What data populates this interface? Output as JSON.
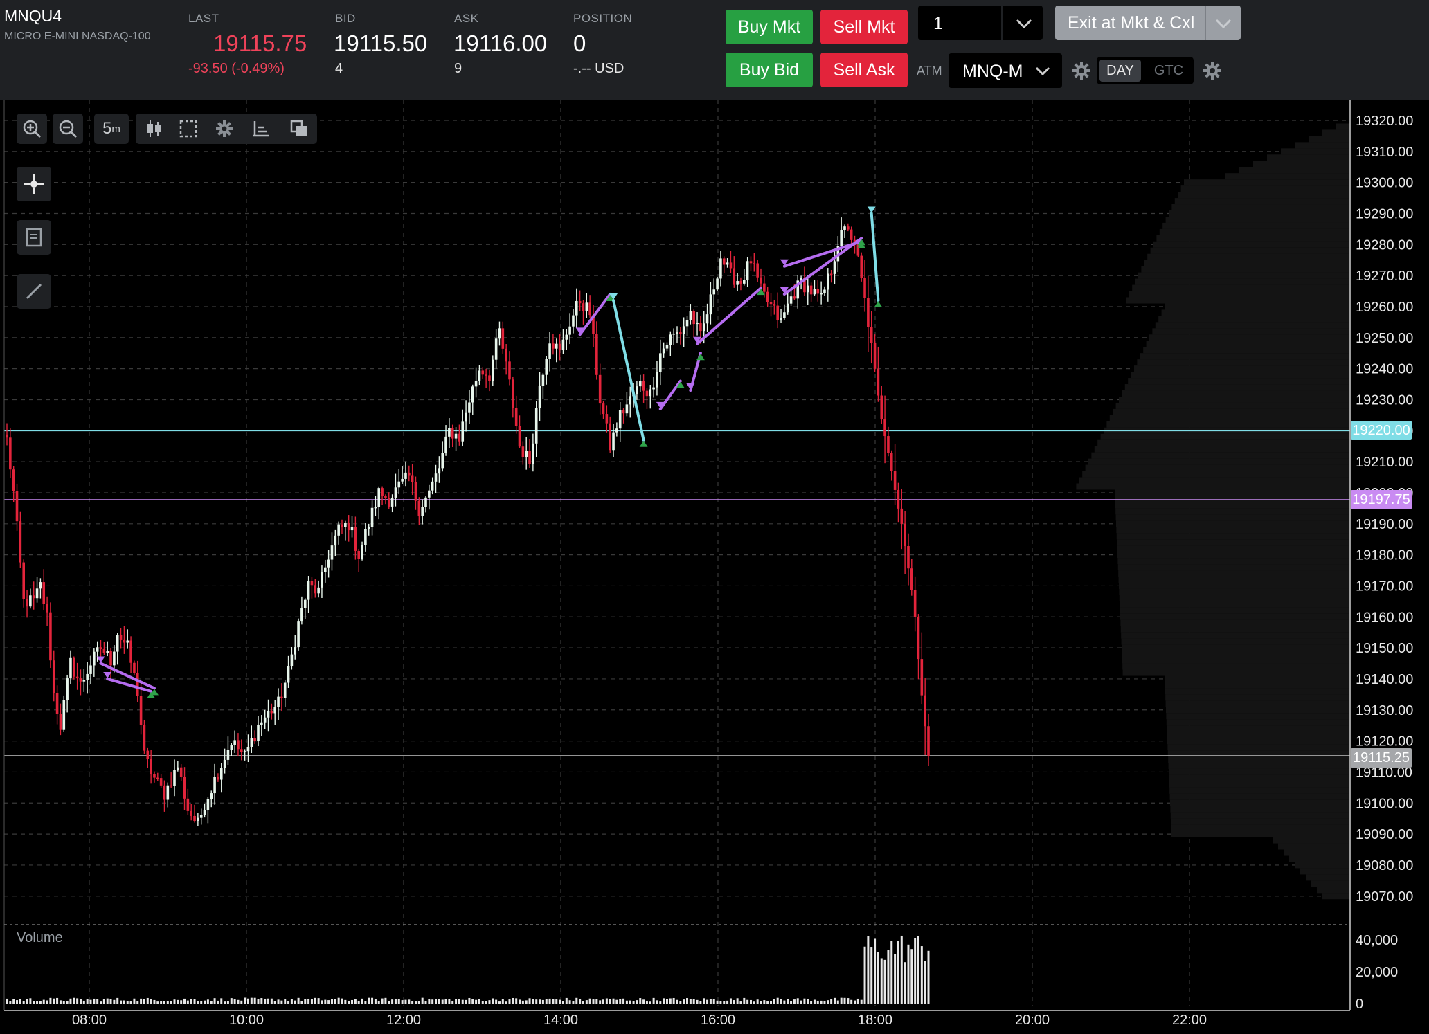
{
  "instrument": {
    "symbol": "MNQU4",
    "name": "MICRO E-MINI NASDAQ-100"
  },
  "quote": {
    "last_label": "LAST",
    "last": "19115.75",
    "change": "-93.50 (-0.49%)",
    "bid_label": "BID",
    "bid": "19115.50",
    "bid_size": "4",
    "ask_label": "ASK",
    "ask": "19116.00",
    "ask_size": "9",
    "position_label": "POSITION",
    "position": "0",
    "pnl": "-.-- USD"
  },
  "order_buttons": {
    "buy_mkt": "Buy Mkt",
    "sell_mkt": "Sell Mkt",
    "buy_bid": "Buy Bid",
    "sell_ask": "Sell Ask",
    "exit": "Exit at Mkt & Cxl"
  },
  "quantity": "1",
  "atm": {
    "label": "ATM",
    "value": "MNQ-M"
  },
  "tif": {
    "day": "DAY",
    "gtc": "GTC",
    "selected": "DAY"
  },
  "toolbar": {
    "interval": "5",
    "interval_unit": "m"
  },
  "colors": {
    "up": "#e8f6ec",
    "down": "#e3243b",
    "accent_cyan": "#7fdde6",
    "accent_purple": "#b56cf0",
    "buy": "#27a042",
    "sell": "#e3243b",
    "header_bg": "#1f2124"
  },
  "chart_data": {
    "type": "candlestick",
    "y_axis": {
      "min": 19060,
      "max": 19325,
      "ticks": [
        "19320.00",
        "19310.00",
        "19300.00",
        "19290.00",
        "19280.00",
        "19270.00",
        "19260.00",
        "19250.00",
        "19240.00",
        "19230.00",
        "19220.00",
        "19210.00",
        "19200.00",
        "19190.00",
        "19180.00",
        "19170.00",
        "19160.00",
        "19150.00",
        "19140.00",
        "19130.00",
        "19120.00",
        "19110.00",
        "19100.00",
        "19090.00",
        "19080.00",
        "19070.00"
      ]
    },
    "x_axis": {
      "ticks": [
        "08:00",
        "10:00",
        "12:00",
        "14:00",
        "16:00",
        "18:00",
        "20:00",
        "22:00"
      ]
    },
    "price_lines": [
      {
        "label": "19220.00",
        "value": 19220.0,
        "color": "#7fdde6"
      },
      {
        "label": "19197.75",
        "value": 19197.75,
        "color": "#c98bf2"
      },
      {
        "label": "19115.25",
        "value": 19115.25,
        "color": "#a9a9a9"
      }
    ],
    "keypoints": [
      [
        0,
        19217
      ],
      [
        2,
        19200
      ],
      [
        5,
        19165
      ],
      [
        8,
        19165
      ],
      [
        10,
        19170
      ],
      [
        12,
        19160
      ],
      [
        14,
        19135
      ],
      [
        16,
        19125
      ],
      [
        19,
        19145
      ],
      [
        22,
        19138
      ],
      [
        25,
        19145
      ],
      [
        28,
        19150
      ],
      [
        31,
        19146
      ],
      [
        33,
        19155
      ],
      [
        36,
        19150
      ],
      [
        39,
        19136
      ],
      [
        41,
        19115
      ],
      [
        44,
        19108
      ],
      [
        47,
        19103
      ],
      [
        51,
        19112
      ],
      [
        54,
        19098
      ],
      [
        57,
        19093
      ],
      [
        59,
        19100
      ],
      [
        63,
        19110
      ],
      [
        67,
        19120
      ],
      [
        71,
        19115
      ],
      [
        75,
        19125
      ],
      [
        79,
        19130
      ],
      [
        81,
        19132
      ],
      [
        84,
        19142
      ],
      [
        87,
        19158
      ],
      [
        90,
        19170
      ],
      [
        93,
        19168
      ],
      [
        96,
        19180
      ],
      [
        99,
        19188
      ],
      [
        102,
        19190
      ],
      [
        105,
        19180
      ],
      [
        108,
        19190
      ],
      [
        111,
        19200
      ],
      [
        114,
        19198
      ],
      [
        117,
        19202
      ],
      [
        120,
        19205
      ],
      [
        123,
        19195
      ],
      [
        126,
        19200
      ],
      [
        129,
        19208
      ],
      [
        132,
        19220
      ],
      [
        135,
        19218
      ],
      [
        138,
        19230
      ],
      [
        141,
        19240
      ],
      [
        144,
        19238
      ],
      [
        147,
        19252
      ],
      [
        150,
        19235
      ],
      [
        153,
        19215
      ],
      [
        156,
        19210
      ],
      [
        159,
        19235
      ],
      [
        162,
        19250
      ],
      [
        165,
        19245
      ],
      [
        168,
        19255
      ],
      [
        171,
        19262
      ],
      [
        174,
        19258
      ],
      [
        177,
        19230
      ],
      [
        180,
        19215
      ],
      [
        183,
        19225
      ],
      [
        186,
        19230
      ],
      [
        189,
        19235
      ],
      [
        192,
        19232
      ],
      [
        195,
        19245
      ],
      [
        198,
        19250
      ],
      [
        201,
        19252
      ],
      [
        204,
        19258
      ],
      [
        207,
        19250
      ],
      [
        210,
        19262
      ],
      [
        213,
        19276
      ],
      [
        216,
        19270
      ],
      [
        219,
        19268
      ],
      [
        222,
        19275
      ],
      [
        225,
        19265
      ],
      [
        228,
        19260
      ],
      [
        231,
        19255
      ],
      [
        234,
        19263
      ],
      [
        237,
        19268
      ],
      [
        240,
        19265
      ],
      [
        243,
        19262
      ],
      [
        246,
        19272
      ],
      [
        248,
        19281
      ],
      [
        251,
        19286
      ],
      [
        254,
        19275
      ],
      [
        257,
        19255
      ],
      [
        260,
        19230
      ],
      [
        263,
        19215
      ],
      [
        266,
        19195
      ],
      [
        268,
        19185
      ],
      [
        270,
        19168
      ],
      [
        272,
        19148
      ],
      [
        275,
        19115
      ]
    ],
    "volume": {
      "label": "Volume",
      "ticks": [
        "40,000",
        "20,000",
        "0"
      ],
      "max": 50000
    },
    "annotations": "trade execution markers (purple/cyan connectors with triangles)"
  }
}
